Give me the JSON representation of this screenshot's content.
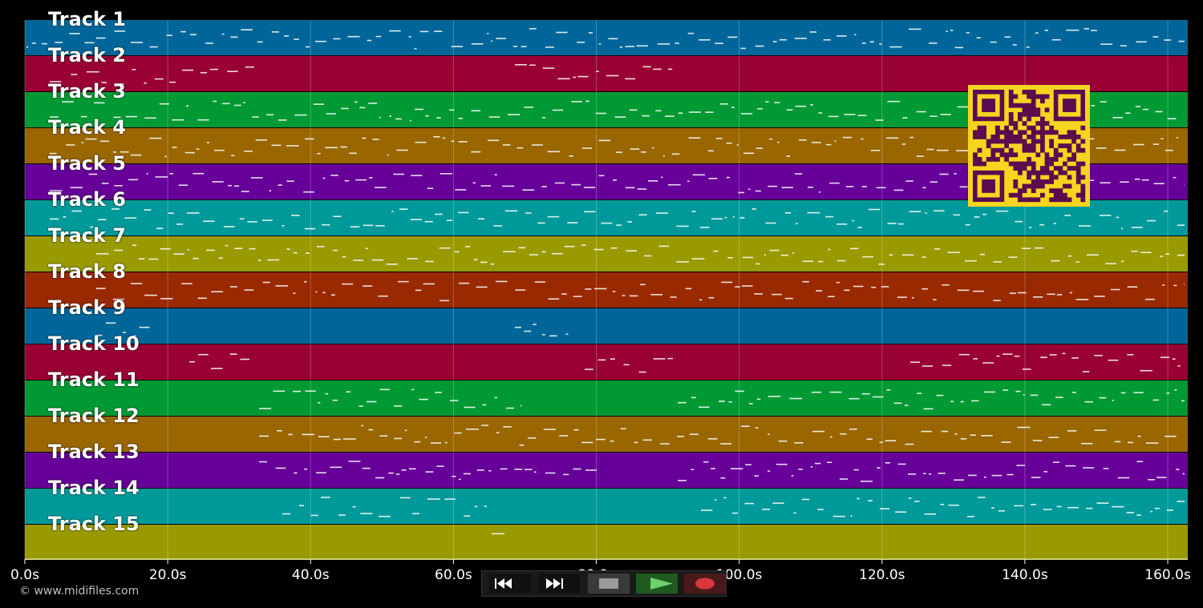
{
  "tracks": [
    {
      "name": "Track 1",
      "color": "#006699"
    },
    {
      "name": "Track 2",
      "color": "#990033"
    },
    {
      "name": "Track 3",
      "color": "#009933"
    },
    {
      "name": "Track 4",
      "color": "#996600"
    },
    {
      "name": "Track 5",
      "color": "#660099"
    },
    {
      "name": "Track 6",
      "color": "#009999"
    },
    {
      "name": "Track 7",
      "color": "#999900"
    },
    {
      "name": "Track 8",
      "color": "#992900"
    },
    {
      "name": "Track 9",
      "color": "#006699"
    },
    {
      "name": "Track 10",
      "color": "#990033"
    },
    {
      "name": "Track 11",
      "color": "#009933"
    },
    {
      "name": "Track 12",
      "color": "#996600"
    },
    {
      "name": "Track 13",
      "color": "#660099"
    },
    {
      "name": "Track 14",
      "color": "#009999"
    },
    {
      "name": "Track 15",
      "color": "#999900"
    }
  ],
  "timeline": {
    "duration_s": 162.8,
    "ticks": [
      "0.0s",
      "20.0s",
      "40.0s",
      "60.0s",
      "80.0s",
      "100.0s",
      "120.0s",
      "140.0s",
      "160.0s"
    ]
  },
  "copyright": "© www.midifiles.com",
  "transport": {
    "rewind": "rewind-icon",
    "fast_forward": "fast-forward-icon",
    "stop": "stop-icon",
    "play": "play-icon",
    "record": "record-icon",
    "play_active": true
  },
  "qr": {
    "fg": "#5c0b4f",
    "bg": "#f5d51f"
  }
}
